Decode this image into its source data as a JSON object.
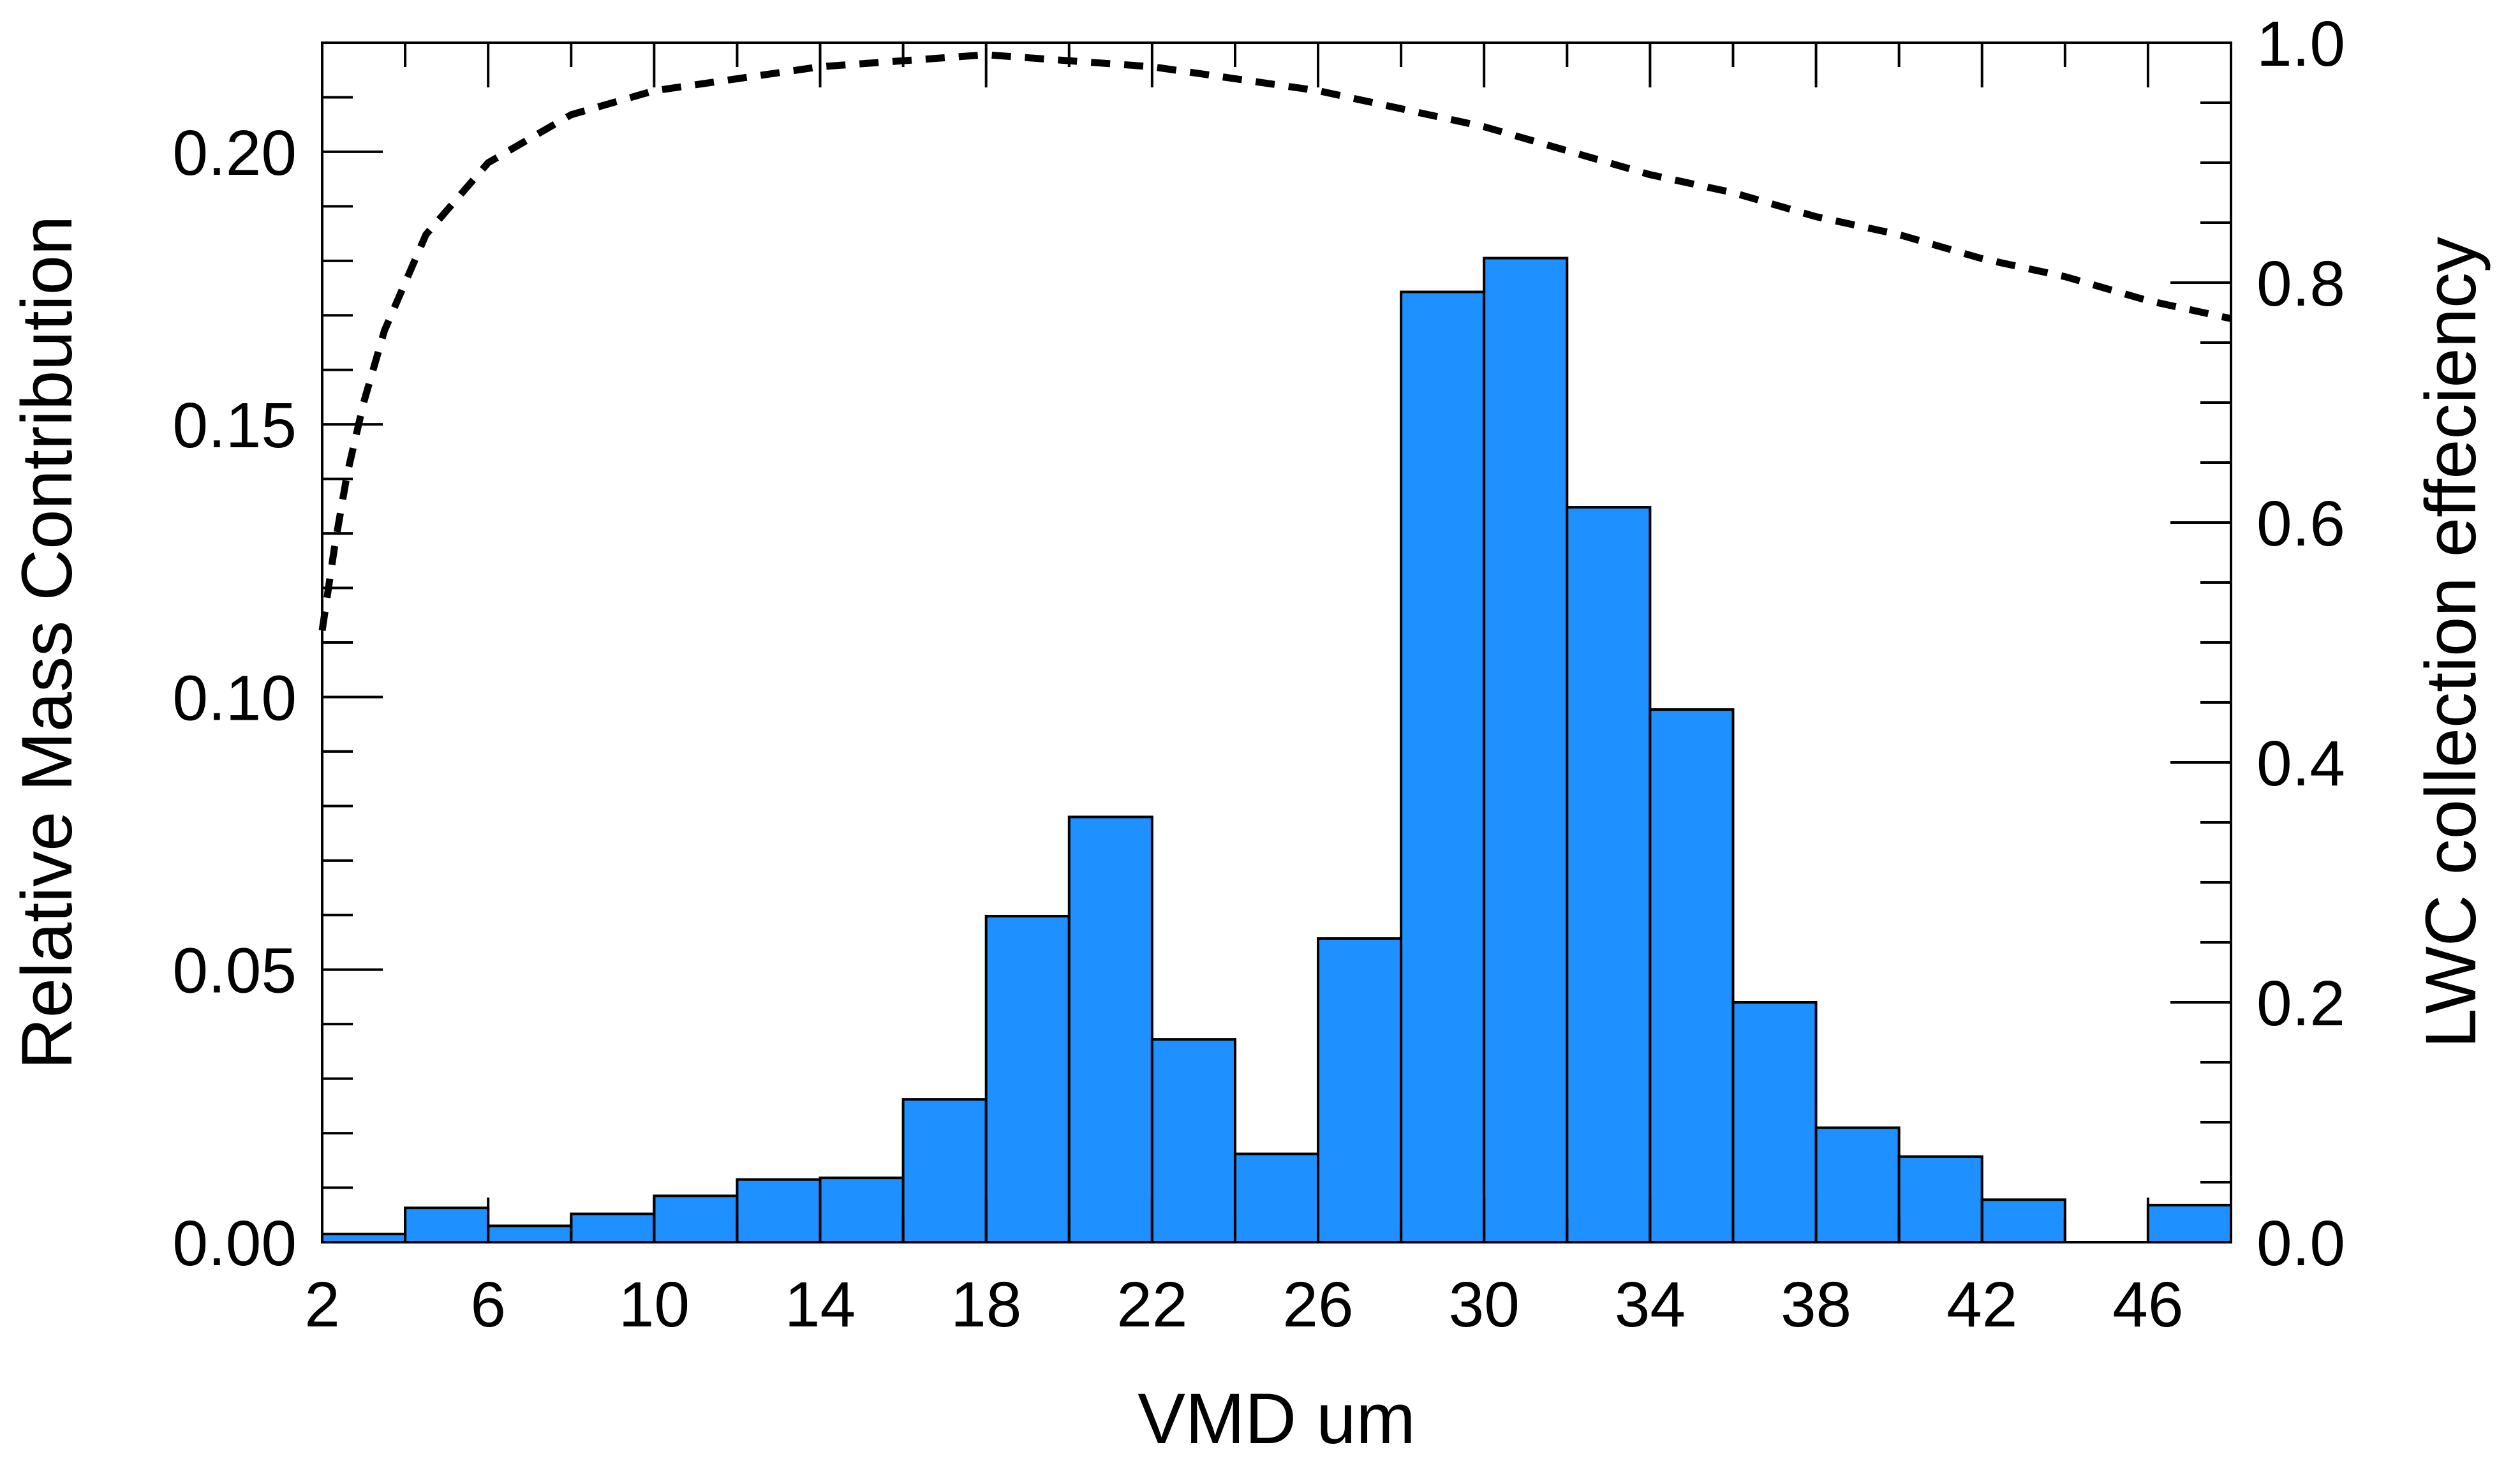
{
  "chart_data": {
    "type": "bar",
    "xlabel": "VMD um",
    "ylabel": "Relative Mass Contribution",
    "y2label": "LWC collection effeciency",
    "xlim": [
      2,
      48
    ],
    "ylim": [
      0,
      0.22
    ],
    "y2lim": [
      0,
      1.0
    ],
    "grid": false,
    "x_ticks": [
      "2",
      "6",
      "10",
      "14",
      "18",
      "22",
      "26",
      "30",
      "34",
      "38",
      "42",
      "46"
    ],
    "y_ticks": [
      "0.00",
      "0.05",
      "0.10",
      "0.15",
      "0.20"
    ],
    "y2_ticks": [
      "0.0",
      "0.2",
      "0.4",
      "0.6",
      "0.8",
      "1.0"
    ],
    "bar_color": "#1E90FF",
    "bin_width": 2,
    "bin_starts": [
      2,
      4,
      6,
      8,
      10,
      12,
      14,
      16,
      18,
      20,
      22,
      24,
      26,
      28,
      30,
      32,
      34,
      36,
      38,
      40,
      42,
      44,
      46
    ],
    "values": [
      0.0015,
      0.0063,
      0.003,
      0.0052,
      0.0085,
      0.0115,
      0.0118,
      0.0262,
      0.0598,
      0.078,
      0.0372,
      0.0162,
      0.0557,
      0.1743,
      0.1805,
      0.1348,
      0.0977,
      0.044,
      0.021,
      0.0157,
      0.0078,
      0.0,
      0.0068
    ],
    "efficiency_curve": {
      "style": "dashed",
      "x": [
        2,
        2.3,
        2.6,
        3,
        3.5,
        4,
        4.5,
        5,
        6,
        7,
        8,
        9,
        10,
        12,
        14,
        16,
        18,
        20,
        22,
        24,
        26,
        28,
        30,
        32,
        34,
        36,
        38,
        40,
        42,
        44,
        46,
        48
      ],
      "y": [
        0.51,
        0.58,
        0.64,
        0.7,
        0.76,
        0.8,
        0.84,
        0.86,
        0.9,
        0.92,
        0.94,
        0.95,
        0.96,
        0.97,
        0.98,
        0.985,
        0.99,
        0.985,
        0.98,
        0.97,
        0.96,
        0.945,
        0.93,
        0.91,
        0.89,
        0.875,
        0.855,
        0.84,
        0.82,
        0.805,
        0.785,
        0.77
      ]
    }
  }
}
